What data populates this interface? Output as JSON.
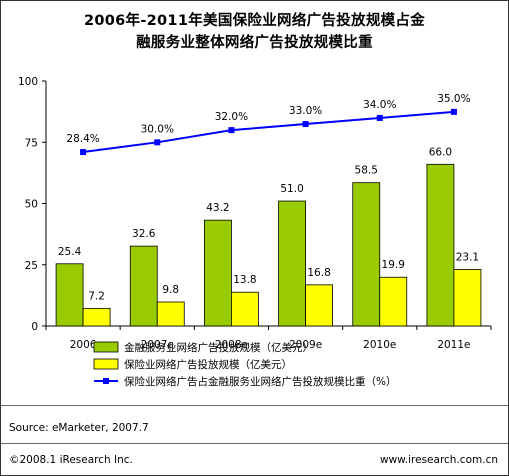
{
  "title_line1": "2006年-2011年美国保险业网络广告投放规模占金",
  "title_line2": "融服务业整体网络广告投放规模比重",
  "source": "Source: eMarketer, 2007.7",
  "copyright": "©2008.1 iResearch Inc.",
  "website": "www.iresearch.com.cn",
  "colors": {
    "financial": "#99cc00",
    "insurance": "#ffff00",
    "share_line": "#0000ff",
    "bar_stroke": "#000000"
  },
  "chart_data": {
    "type": "bar",
    "categories": [
      "2006",
      "2007e",
      "2008e",
      "2009e",
      "2010e",
      "2011e"
    ],
    "series": [
      {
        "name": "金融服务业网络广告投放规模（亿美元）",
        "type": "bar",
        "values": [
          25.4,
          32.6,
          43.2,
          51.0,
          58.5,
          66.0
        ],
        "labels": [
          "25.4",
          "32.6",
          "43.2",
          "51.0",
          "58.5",
          "66.0"
        ]
      },
      {
        "name": "保险业网络广告投放规模（亿美元）",
        "type": "bar",
        "values": [
          7.2,
          9.8,
          13.8,
          16.8,
          19.9,
          23.1
        ],
        "labels": [
          "7.2",
          "9.8",
          "13.8",
          "16.8",
          "19.9",
          "23.1"
        ]
      },
      {
        "name": "保险业网络广告占金融服务业网络广告投放规模比重（%）",
        "type": "line",
        "values": [
          28.4,
          30.0,
          32.0,
          33.0,
          34.0,
          35.0
        ],
        "labels": [
          "28.4%",
          "30.0%",
          "32.0%",
          "33.0%",
          "34.0%",
          "35.0%"
        ]
      }
    ],
    "yticks": [
      "0",
      "25",
      "50",
      "75",
      "100"
    ],
    "ylim": [
      0,
      100
    ],
    "grid": false,
    "legend_position": "bottom"
  }
}
